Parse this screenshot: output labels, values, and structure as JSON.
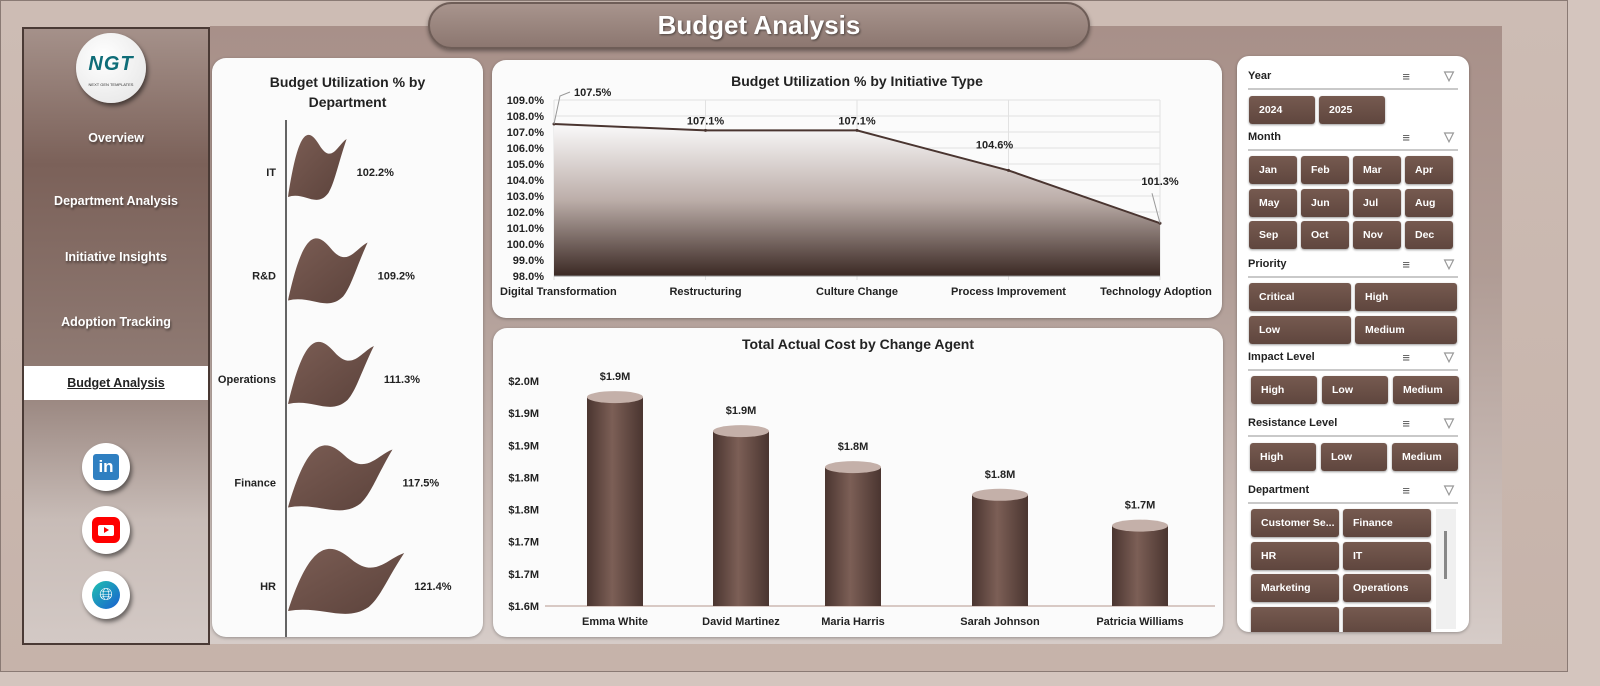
{
  "title": "Budget Analysis",
  "logo": {
    "text": "NGT",
    "tagline": "NEXT GEN TEMPLATES"
  },
  "nav": [
    {
      "label": "Overview"
    },
    {
      "label": "Department Analysis"
    },
    {
      "label": "Initiative Insights"
    },
    {
      "label": "Adoption Tracking"
    },
    {
      "label": "Budget Analysis",
      "active": true
    }
  ],
  "social": [
    "linkedin-icon",
    "youtube-icon",
    "globe-icon"
  ],
  "colors": {
    "bar": "#6b4e45",
    "accent": "#5f463e"
  },
  "chart_data": [
    {
      "type": "bar",
      "orientation": "horizontal",
      "title": "Budget Utilization % by Department",
      "categories": [
        "IT",
        "R&D",
        "Operations",
        "Finance",
        "HR"
      ],
      "values": [
        102.2,
        109.2,
        111.3,
        117.5,
        121.4
      ],
      "labels": [
        "102.2%",
        "109.2%",
        "111.3%",
        "117.5%",
        "121.4%"
      ]
    },
    {
      "type": "area",
      "title": "Budget Utilization % by Initiative Type",
      "categories": [
        "Digital Transformation",
        "Restructuring",
        "Culture Change",
        "Process Improvement",
        "Technology Adoption"
      ],
      "values": [
        107.5,
        107.1,
        107.1,
        104.6,
        101.3
      ],
      "labels": [
        "107.5%",
        "107.1%",
        "107.1%",
        "104.6%",
        "101.3%"
      ],
      "ylim": [
        98,
        109
      ],
      "yticks": [
        "98.0%",
        "99.0%",
        "100.0%",
        "101.0%",
        "102.0%",
        "103.0%",
        "104.0%",
        "105.0%",
        "106.0%",
        "107.0%",
        "108.0%",
        "109.0%"
      ],
      "grid": true
    },
    {
      "type": "bar",
      "title": "Total Actual Cost by Change Agent",
      "categories": [
        "Emma White",
        "David Martinez",
        "Maria Harris",
        "Sarah Johnson",
        "Patricia Williams"
      ],
      "values": [
        1.925,
        1.872,
        1.816,
        1.773,
        1.725
      ],
      "labels": [
        "$1.9M",
        "$1.9M",
        "$1.8M",
        "$1.8M",
        "$1.7M"
      ],
      "ylim": [
        1.6,
        1.95
      ],
      "yticks": [
        "$1.6M",
        "$1.7M",
        "$1.7M",
        "$1.8M",
        "$1.8M",
        "$1.9M",
        "$1.9M",
        "$2.0M"
      ]
    }
  ],
  "slicers": [
    {
      "title": "Year",
      "items": [
        "2024",
        "2025"
      ]
    },
    {
      "title": "Month",
      "items": [
        "Jan",
        "Feb",
        "Mar",
        "Apr",
        "May",
        "Jun",
        "Jul",
        "Aug",
        "Sep",
        "Oct",
        "Nov",
        "Dec"
      ]
    },
    {
      "title": "Priority",
      "items": [
        "Critical",
        "High",
        "Low",
        "Medium"
      ]
    },
    {
      "title": "Impact Level",
      "items": [
        "High",
        "Low",
        "Medium"
      ]
    },
    {
      "title": "Resistance Level",
      "items": [
        "High",
        "Low",
        "Medium"
      ]
    },
    {
      "title": "Department",
      "items": [
        "Customer Se...",
        "Finance",
        "HR",
        "IT",
        "Marketing",
        "Operations",
        "",
        ""
      ]
    }
  ]
}
